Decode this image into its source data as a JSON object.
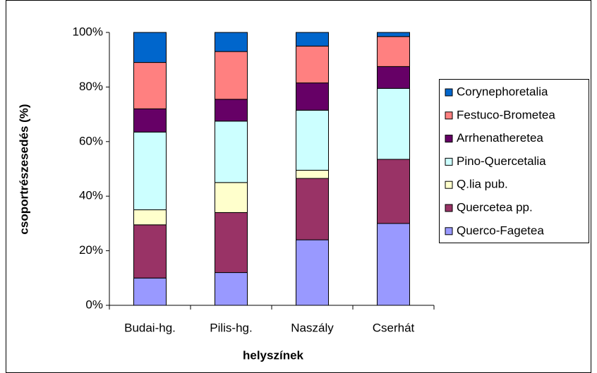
{
  "chart_data": {
    "type": "stacked_bar",
    "xlabel": "helyszínek",
    "ylabel": "csoportrészesedés (%)",
    "categories": [
      "Budai-hg.",
      "Pilis-hg.",
      "Naszály",
      "Cserhát"
    ],
    "series": [
      {
        "name": "Querco-Fagetea",
        "color": "#9999ff",
        "values": [
          10,
          12,
          24,
          30
        ]
      },
      {
        "name": "Quercetea pp.",
        "color": "#993366",
        "values": [
          19.5,
          22,
          22.5,
          23.5
        ]
      },
      {
        "name": "Q.lia pub.",
        "color": "#ffffcc",
        "values": [
          5.5,
          11,
          3,
          0
        ]
      },
      {
        "name": "Pino-Quercetalia",
        "color": "#ccffff",
        "values": [
          28.5,
          22.5,
          22,
          26
        ]
      },
      {
        "name": "Arrhenatheretea",
        "color": "#660066",
        "values": [
          8.5,
          8,
          10,
          8
        ]
      },
      {
        "name": "Festuco-Brometea",
        "color": "#ff8080",
        "values": [
          17,
          17.5,
          13.5,
          11
        ]
      },
      {
        "name": "Corynephoretalia",
        "color": "#0066cc",
        "values": [
          11,
          7,
          5,
          1.5
        ]
      }
    ],
    "ylim": [
      0,
      100
    ],
    "yticks": [
      {
        "value": 0,
        "label": "0%"
      },
      {
        "value": 20,
        "label": "20%"
      },
      {
        "value": 40,
        "label": "40%"
      },
      {
        "value": 60,
        "label": "60%"
      },
      {
        "value": 80,
        "label": "80%"
      },
      {
        "value": 100,
        "label": "100%"
      }
    ],
    "legend": "right"
  }
}
